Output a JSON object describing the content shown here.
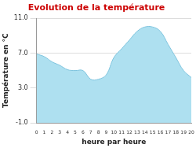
{
  "chart_data": {
    "type": "area",
    "title": "Evolution de la température",
    "x_label": "heure par heure",
    "y_label": "Température en °C",
    "categories": [
      "0",
      "1",
      "2",
      "3",
      "4",
      "5",
      "6",
      "7",
      "8",
      "9",
      "10",
      "11",
      "12",
      "13",
      "14",
      "15",
      "16",
      "17",
      "18",
      "19",
      "20"
    ],
    "values": [
      6.9,
      6.6,
      6.0,
      5.6,
      5.1,
      5.0,
      5.0,
      4.0,
      4.0,
      4.5,
      6.5,
      7.5,
      8.5,
      9.5,
      10.0,
      10.0,
      9.5,
      8.0,
      6.5,
      5.0,
      4.2
    ],
    "color": "#aee0f0",
    "ylim": [
      -1,
      11
    ],
    "yticks": [
      {
        "value": -1,
        "label": "-1.0"
      },
      {
        "value": 3,
        "label": "3.0"
      },
      {
        "value": 7,
        "label": "7.0"
      },
      {
        "value": 11,
        "label": "11.0"
      }
    ],
    "grid": true
  }
}
